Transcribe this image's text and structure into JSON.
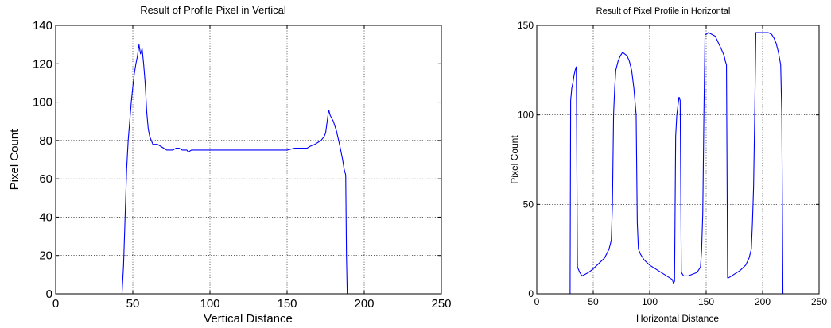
{
  "chart_data": [
    {
      "type": "line",
      "title": "Result of Profile Pixel in Vertical",
      "xlabel": "Vertical Distance",
      "ylabel": "Pixel Count",
      "xlim": [
        0,
        250
      ],
      "ylim": [
        0,
        140
      ],
      "xticks": [
        0,
        50,
        100,
        150,
        200,
        250
      ],
      "yticks": [
        0,
        20,
        40,
        60,
        80,
        100,
        120,
        140
      ],
      "xtick_labels": [
        "0",
        "50",
        "100",
        "150",
        "200",
        "250"
      ],
      "ytick_labels": [
        "0",
        "20",
        "40",
        "60",
        "80",
        "100",
        "120",
        "140"
      ],
      "grid": true,
      "color": "#0000ff",
      "series": [
        {
          "x": [
            0,
            43,
            44,
            45,
            46,
            47,
            48,
            49,
            50,
            51,
            52,
            53,
            54,
            55,
            56,
            57,
            58,
            59,
            60,
            61,
            62,
            63,
            64,
            66,
            68,
            70,
            72,
            74,
            76,
            78,
            80,
            82,
            84,
            85,
            86,
            88,
            90,
            100,
            120,
            140,
            150,
            155,
            160,
            163,
            165,
            168,
            170,
            172,
            174,
            175,
            176,
            177,
            178,
            180,
            182,
            184,
            186,
            187,
            188,
            188.5,
            189,
            190,
            220
          ],
          "y": [
            0,
            0,
            15,
            40,
            65,
            80,
            90,
            100,
            108,
            115,
            120,
            124,
            130,
            125,
            128,
            120,
            110,
            95,
            86,
            82,
            80,
            78,
            78,
            78,
            77,
            76,
            75,
            75,
            75,
            76,
            76,
            75,
            75,
            75,
            74,
            75,
            75,
            75,
            75,
            75,
            75,
            76,
            76,
            76,
            77,
            78,
            79,
            80,
            82,
            84,
            90,
            96,
            93,
            90,
            85,
            78,
            70,
            65,
            62,
            20,
            0,
            0,
            0
          ]
        }
      ]
    },
    {
      "type": "line",
      "title": "Result of Pixel Profile in Horizontal",
      "xlabel": "Horizontal Distance",
      "ylabel": "Pixel Count",
      "xlim": [
        0,
        250
      ],
      "ylim": [
        0,
        150
      ],
      "xticks": [
        0,
        50,
        100,
        150,
        200,
        250
      ],
      "yticks": [
        0,
        50,
        100,
        150
      ],
      "xtick_labels": [
        "0",
        "50",
        "100",
        "150",
        "200",
        "250"
      ],
      "ytick_labels": [
        "0",
        "50",
        "100",
        "150"
      ],
      "grid": true,
      "color": "#0000ff",
      "series": [
        {
          "x": [
            0,
            29.5,
            30,
            31,
            32,
            33,
            34,
            35,
            36,
            38,
            40,
            43,
            46,
            50,
            55,
            60,
            64,
            66,
            67,
            68,
            69,
            70,
            72,
            74,
            76,
            78,
            80,
            82,
            84,
            86,
            88,
            89,
            90,
            92,
            95,
            100,
            105,
            110,
            115,
            120,
            121,
            122,
            123,
            124,
            125,
            126,
            127,
            128,
            130,
            134,
            138,
            142,
            145,
            146,
            147,
            148,
            149,
            150,
            152,
            155,
            158,
            161,
            164,
            166,
            167,
            168,
            169,
            170,
            175,
            180,
            185,
            188,
            190,
            191,
            192,
            193,
            194,
            195,
            200,
            205,
            208,
            210,
            212,
            214,
            216,
            217,
            218,
            220,
            250
          ],
          "y": [
            0,
            0,
            108,
            115,
            118,
            122,
            125,
            127,
            15,
            12,
            10,
            11,
            12,
            14,
            17,
            20,
            25,
            30,
            50,
            100,
            115,
            125,
            130,
            133,
            135,
            134,
            133,
            130,
            125,
            115,
            100,
            40,
            25,
            22,
            19,
            16,
            14,
            12,
            10,
            8,
            6,
            7,
            88,
            100,
            105,
            110,
            108,
            12,
            10,
            10,
            11,
            12,
            15,
            25,
            45,
            100,
            145,
            145,
            146,
            145,
            144,
            140,
            136,
            133,
            130,
            128,
            9,
            9,
            11,
            13,
            16,
            20,
            25,
            40,
            60,
            100,
            146,
            146,
            146,
            146,
            145,
            143,
            140,
            135,
            128,
            100,
            0,
            0,
            0
          ]
        }
      ]
    }
  ]
}
